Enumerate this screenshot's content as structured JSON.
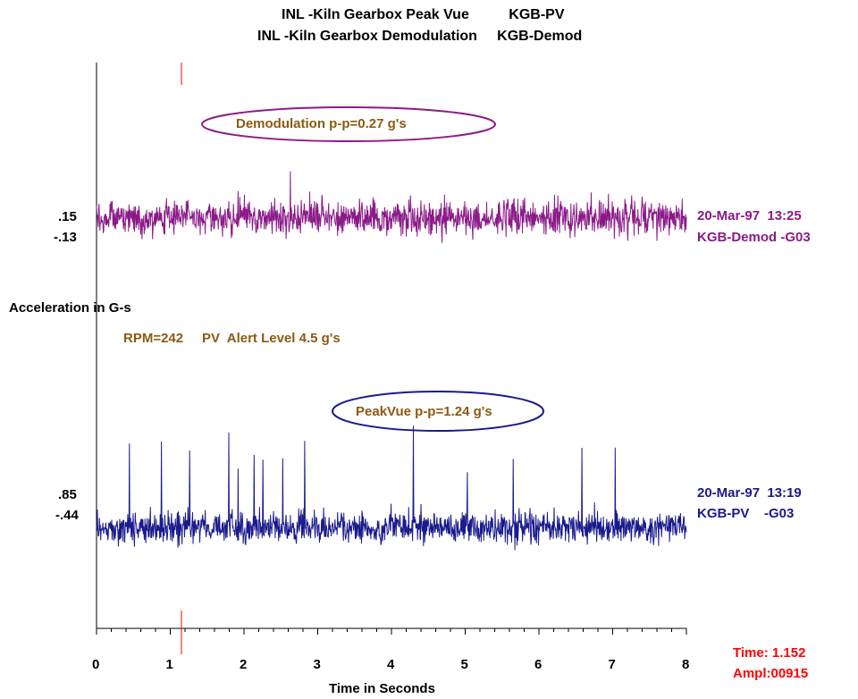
{
  "titles": {
    "line1": "INL -Kiln Gearbox Peak Vue          KGB-PV",
    "line2": "INL -Kiln Gearbox Demodulation     KGB-Demod"
  },
  "y_axis_label": "Acceleration in G-s",
  "x_axis_label": "Time in Seconds",
  "annotations": {
    "demod_pp": "Demodulation p-p=0.27 g's",
    "peakvue_pp": "PeakVue p-p=1.24 g's",
    "rpm_alert": "RPM=242     PV  Alert Level 4.5 g's"
  },
  "demod_trace": {
    "scale_top": ".15",
    "scale_bottom": "-.13",
    "date_time": "20-Mar-97  13:25",
    "id": "KGB-Demod -G03"
  },
  "pv_trace": {
    "scale_top": ".85",
    "scale_bottom": "-.44",
    "date_time": "20-Mar-97  13:19",
    "id": "KGB-PV    -G03"
  },
  "cursor": {
    "time_text": "Time: 1.152",
    "ampl_text": "Ampl:00915",
    "time_value": 1.152
  },
  "colors": {
    "demod": "#8b1a89",
    "pv": "#1a1a8c",
    "annotation": "#8b5a12",
    "cursor": "#ff0000"
  },
  "chart_data": [
    {
      "type": "line",
      "name": "KGB-Demod -G03",
      "xlabel": "Time in Seconds",
      "ylabel": "Acceleration in G-s",
      "xlim": [
        0,
        8
      ],
      "ylim": [
        -0.13,
        0.15
      ],
      "peak_to_peak": 0.27,
      "note": "dense random-like vibration waveform; individual samples not readable"
    },
    {
      "type": "line",
      "name": "KGB-PV -G03",
      "xlabel": "Time in Seconds",
      "ylabel": "Acceleration in G-s",
      "xlim": [
        0,
        8
      ],
      "ylim": [
        -0.44,
        0.85
      ],
      "peak_to_peak": 1.24,
      "note": "dense random-like vibration waveform with spikes; individual samples not readable"
    }
  ],
  "x_ticks": [
    "0",
    "1",
    "2",
    "3",
    "4",
    "5",
    "6",
    "7",
    "8"
  ]
}
